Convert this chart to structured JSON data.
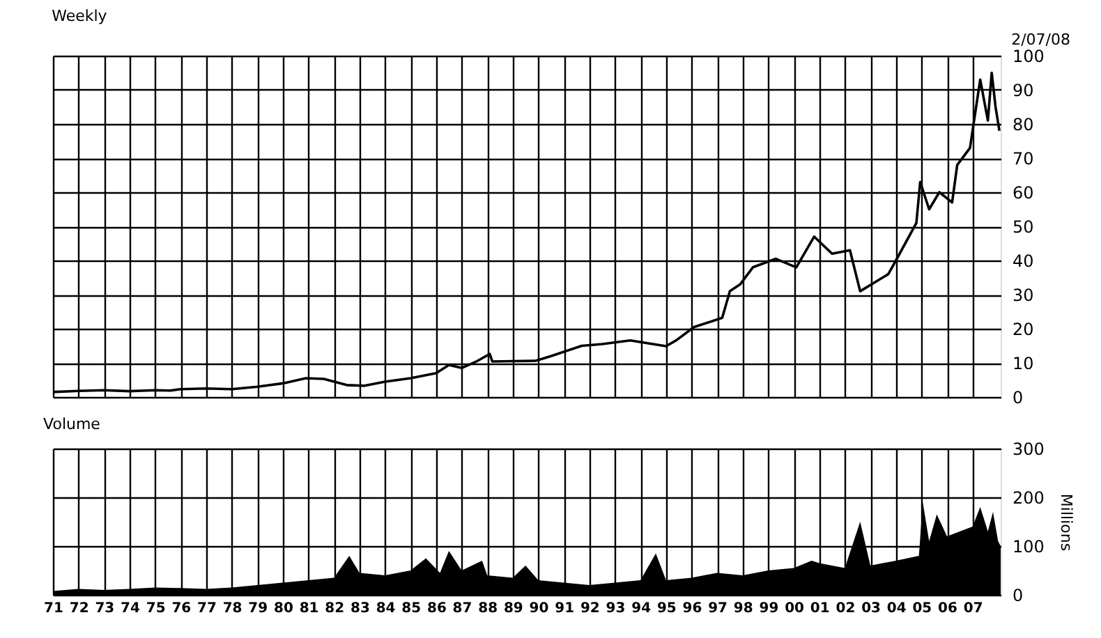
{
  "chart_data": [
    {
      "type": "line",
      "title": "Weekly",
      "annotations": [
        "2/07/08"
      ],
      "series": [
        {
          "color": "#000000",
          "x": [
            1971,
            1971.1,
            1972,
            1973,
            1974,
            1975,
            1975.6,
            1976,
            1977,
            1978,
            1979,
            1980,
            1980.9,
            1981.6,
            1982.5,
            1983.2,
            1984,
            1985,
            1986,
            1986.5,
            1987,
            1987.6,
            1988.1,
            1988.2,
            1989,
            1989.9,
            1990.5,
            1991.7,
            1992.5,
            1993.6,
            1995,
            1995.4,
            1996.1,
            1997.2,
            1997.5,
            1997.9,
            1998.4,
            1999.3,
            2000.1,
            2000.8,
            2001.5,
            2002.2,
            2002.6,
            2003.7,
            2004.0,
            2004.8,
            2004.95,
            2005.3,
            2005.7,
            2006.2,
            2006.4,
            2006.9,
            2007.3,
            2007.6,
            2007.75,
            2007.9,
            2008.05
          ],
          "values": [
            1.5,
            1.5,
            1.8,
            2.0,
            1.7,
            2.0,
            1.9,
            2.3,
            2.5,
            2.3,
            3.0,
            4.0,
            5.5,
            5.3,
            3.5,
            3.3,
            4.5,
            5.5,
            7.0,
            9.4,
            8.5,
            10.5,
            12.6,
            10.4,
            10.5,
            10.6,
            12.0,
            15.0,
            15.5,
            16.6,
            14.9,
            16.6,
            20.5,
            23.2,
            31,
            33,
            38,
            40.5,
            38,
            47,
            42,
            43,
            31,
            36,
            40,
            51,
            63,
            55,
            60,
            57,
            68,
            73,
            93,
            81,
            95,
            85,
            78
          ]
        }
      ],
      "xlim": [
        1971,
        2008.1
      ],
      "ylim": [
        0,
        100
      ],
      "yticks": [
        0,
        10,
        20,
        30,
        40,
        50,
        60,
        70,
        80,
        90,
        100
      ],
      "xticks": [
        1971,
        1972,
        1973,
        1974,
        1975,
        1976,
        1977,
        1978,
        1979,
        1980,
        1981,
        1982,
        1983,
        1984,
        1985,
        1986,
        1987,
        1988,
        1989,
        1990,
        1991,
        1992,
        1993,
        1994,
        1995,
        1996,
        1997,
        1998,
        1999,
        2000,
        2001,
        2002,
        2003,
        2004,
        2005,
        2006,
        2007
      ],
      "grid": true,
      "tick_labels": "y",
      "line_style": "solid",
      "marker": "none"
    },
    {
      "type": "area",
      "title": "Volume",
      "ylabel": "Millions",
      "series": [
        {
          "color": "#000000",
          "x": [
            1971,
            1972,
            1973,
            1974,
            1975,
            1976,
            1977,
            1978,
            1979,
            1980,
            1981,
            1982,
            1982.6,
            1983,
            1984,
            1985,
            1985.6,
            1986.15,
            1986.5,
            1987,
            1987.8,
            1988,
            1989,
            1989.5,
            1990,
            1991,
            1992,
            1993,
            1994,
            1994.6,
            1995,
            1996,
            1997,
            1998,
            1999,
            2000,
            2000.7,
            2001,
            2002,
            2002.6,
            2003,
            2004,
            2004.9,
            2005.05,
            2005.3,
            2005.6,
            2006,
            2006.5,
            2007,
            2007.3,
            2007.6,
            2007.8,
            2008,
            2008.1
          ],
          "values": [
            8,
            12,
            10,
            12,
            15,
            14,
            12,
            15,
            20,
            25,
            30,
            35,
            80,
            45,
            40,
            50,
            75,
            45,
            90,
            50,
            70,
            40,
            35,
            60,
            30,
            25,
            20,
            25,
            30,
            85,
            30,
            35,
            45,
            40,
            50,
            55,
            70,
            65,
            55,
            150,
            60,
            70,
            80,
            190,
            110,
            165,
            120,
            130,
            140,
            180,
            130,
            170,
            110,
            100
          ]
        }
      ],
      "xlim": [
        1971,
        2008.1
      ],
      "ylim": [
        0,
        300
      ],
      "yticks": [
        0,
        100,
        200,
        300
      ],
      "xticks": [
        {
          "value": 1971,
          "label": "71"
        },
        {
          "value": 1972,
          "label": "72"
        },
        {
          "value": 1973,
          "label": "73"
        },
        {
          "value": 1974,
          "label": "74"
        },
        {
          "value": 1975,
          "label": "75"
        },
        {
          "value": 1976,
          "label": "76"
        },
        {
          "value": 1977,
          "label": "77"
        },
        {
          "value": 1978,
          "label": "78"
        },
        {
          "value": 1979,
          "label": "79"
        },
        {
          "value": 1980,
          "label": "80"
        },
        {
          "value": 1981,
          "label": "81"
        },
        {
          "value": 1982,
          "label": "82"
        },
        {
          "value": 1983,
          "label": "83"
        },
        {
          "value": 1984,
          "label": "84"
        },
        {
          "value": 1985,
          "label": "85"
        },
        {
          "value": 1986,
          "label": "86"
        },
        {
          "value": 1987,
          "label": "87"
        },
        {
          "value": 1988,
          "label": "88"
        },
        {
          "value": 1989,
          "label": "89"
        },
        {
          "value": 1990,
          "label": "90"
        },
        {
          "value": 1991,
          "label": "91"
        },
        {
          "value": 1992,
          "label": "92"
        },
        {
          "value": 1993,
          "label": "93"
        },
        {
          "value": 1994,
          "label": "94"
        },
        {
          "value": 1995,
          "label": "95"
        },
        {
          "value": 1996,
          "label": "96"
        },
        {
          "value": 1997,
          "label": "97"
        },
        {
          "value": 1998,
          "label": "98"
        },
        {
          "value": 1999,
          "label": "99"
        },
        {
          "value": 2000,
          "label": "00"
        },
        {
          "value": 2001,
          "label": "01"
        },
        {
          "value": 2002,
          "label": "02"
        },
        {
          "value": 2003,
          "label": "03"
        },
        {
          "value": 2004,
          "label": "04"
        },
        {
          "value": 2005,
          "label": "05"
        },
        {
          "value": 2006,
          "label": "06"
        },
        {
          "value": 2007,
          "label": "07"
        }
      ],
      "grid": true
    }
  ]
}
